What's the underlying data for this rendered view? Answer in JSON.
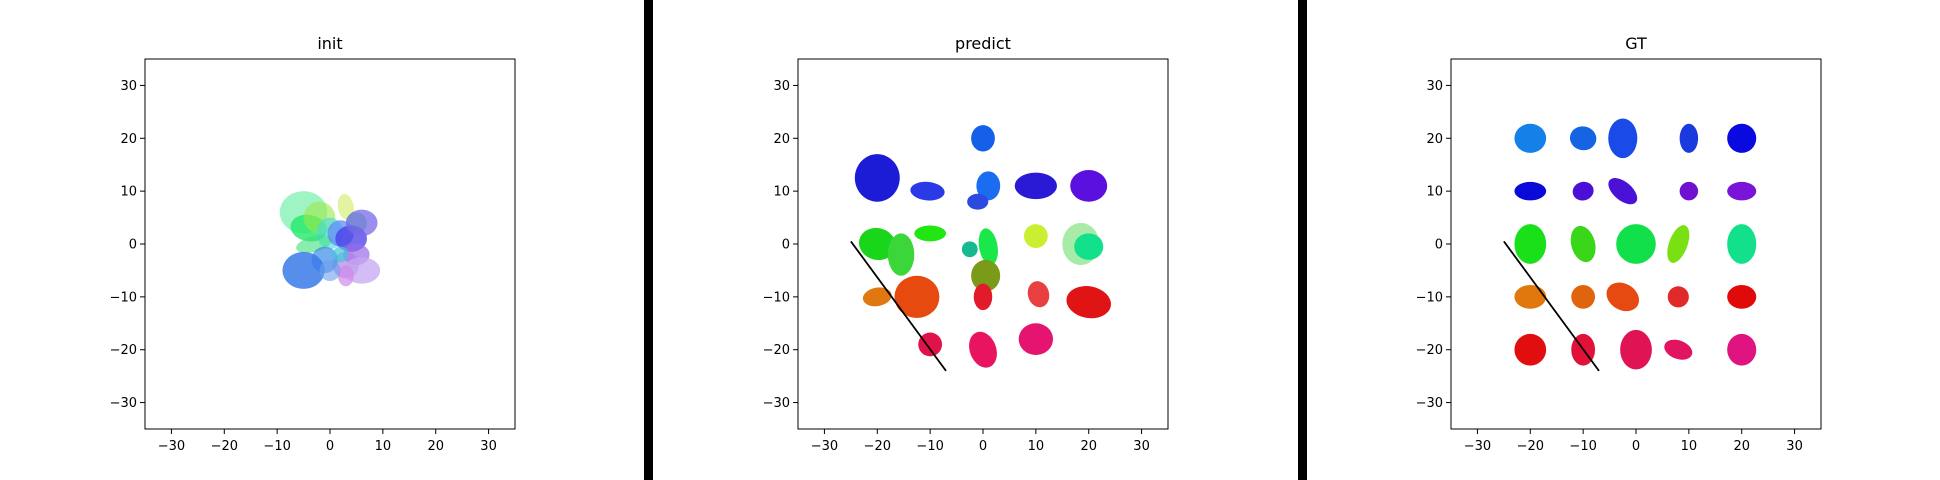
{
  "figure": {
    "separator_color": "#000000"
  },
  "chart_data": [
    {
      "type": "scatter",
      "title": "init",
      "xlabel": "",
      "ylabel": "",
      "xlim": [
        -35,
        35
      ],
      "ylim": [
        -35,
        35
      ],
      "xticks": [
        -30,
        -20,
        -10,
        0,
        10,
        20,
        30
      ],
      "yticks": [
        -30,
        -20,
        -10,
        0,
        10,
        20,
        30
      ],
      "grid": false,
      "lines": [],
      "ellipses": [
        {
          "x": -5,
          "y": 6,
          "w": 9,
          "h": 8,
          "angle": 0,
          "color": "#7ff0b0",
          "alpha": 0.75
        },
        {
          "x": -4,
          "y": 3,
          "w": 7,
          "h": 5,
          "angle": -10,
          "color": "#22e86a",
          "alpha": 0.8
        },
        {
          "x": -2,
          "y": 5,
          "w": 6,
          "h": 6,
          "angle": 0,
          "color": "#9de84a",
          "alpha": 0.6
        },
        {
          "x": 3,
          "y": 7,
          "w": 3,
          "h": 5,
          "angle": 10,
          "color": "#d6f07a",
          "alpha": 0.7
        },
        {
          "x": 5,
          "y": 4,
          "w": 4,
          "h": 4,
          "angle": 0,
          "color": "#4cd888",
          "alpha": 0.7
        },
        {
          "x": 0,
          "y": 2,
          "w": 5,
          "h": 6,
          "angle": 0,
          "color": "#42d8e8",
          "alpha": 0.6
        },
        {
          "x": -3,
          "y": 0,
          "w": 7,
          "h": 3,
          "angle": 15,
          "color": "#3ee07a",
          "alpha": 0.6
        },
        {
          "x": 2,
          "y": 2,
          "w": 5,
          "h": 5,
          "angle": 0,
          "color": "#5b8bf0",
          "alpha": 0.75
        },
        {
          "x": 4,
          "y": 1,
          "w": 6,
          "h": 5,
          "angle": 0,
          "color": "#4a3ae8",
          "alpha": 0.75
        },
        {
          "x": 6,
          "y": 4,
          "w": 6,
          "h": 5,
          "angle": 0,
          "color": "#7a6ae8",
          "alpha": 0.75
        },
        {
          "x": 5,
          "y": -2,
          "w": 5,
          "h": 4,
          "angle": 0,
          "color": "#9a6ae8",
          "alpha": 0.7
        },
        {
          "x": 3,
          "y": -4,
          "w": 5,
          "h": 5,
          "angle": 0,
          "color": "#b07ae8",
          "alpha": 0.65
        },
        {
          "x": 6,
          "y": -5,
          "w": 7,
          "h": 5,
          "angle": 0,
          "color": "#c5a6f0",
          "alpha": 0.75
        },
        {
          "x": 3,
          "y": -6,
          "w": 3,
          "h": 4,
          "angle": 0,
          "color": "#d08ae8",
          "alpha": 0.7
        },
        {
          "x": -1,
          "y": -3,
          "w": 5,
          "h": 5,
          "angle": 0,
          "color": "#3a8ae8",
          "alpha": 0.7
        },
        {
          "x": -5,
          "y": -5,
          "w": 8,
          "h": 7,
          "angle": 0,
          "color": "#3a7ae8",
          "alpha": 0.85
        },
        {
          "x": 0,
          "y": -5,
          "w": 4,
          "h": 4,
          "angle": 0,
          "color": "#6aa0ec",
          "alpha": 0.6
        },
        {
          "x": 2,
          "y": -2,
          "w": 3,
          "h": 3,
          "angle": 0,
          "color": "#3ec8d8",
          "alpha": 0.7
        }
      ]
    },
    {
      "type": "scatter",
      "title": "predict",
      "xlabel": "",
      "ylabel": "",
      "xlim": [
        -35,
        35
      ],
      "ylim": [
        -35,
        35
      ],
      "xticks": [
        -30,
        -20,
        -10,
        0,
        10,
        20,
        30
      ],
      "yticks": [
        -30,
        -20,
        -10,
        0,
        10,
        20,
        30
      ],
      "grid": false,
      "lines": [
        {
          "x1": -25,
          "y1": 0.5,
          "x2": -7,
          "y2": -24,
          "color": "#000000"
        }
      ],
      "ellipses": [
        {
          "x": -20,
          "y": 12.5,
          "w": 8.5,
          "h": 9,
          "angle": 0,
          "color": "#1c1cd6",
          "alpha": 1
        },
        {
          "x": -10.5,
          "y": 10,
          "w": 6.5,
          "h": 3.5,
          "angle": -5,
          "color": "#2a3ae6",
          "alpha": 1
        },
        {
          "x": 0,
          "y": 20,
          "w": 4.5,
          "h": 5,
          "angle": 0,
          "color": "#1460e8",
          "alpha": 1
        },
        {
          "x": 1,
          "y": 11,
          "w": 4.5,
          "h": 5.5,
          "angle": 0,
          "color": "#1a6cf0",
          "alpha": 1
        },
        {
          "x": -1,
          "y": 8,
          "w": 4,
          "h": 3,
          "angle": 0,
          "color": "#2a4ae0",
          "alpha": 1
        },
        {
          "x": 10,
          "y": 11,
          "w": 8,
          "h": 5,
          "angle": 0,
          "color": "#2a1ad6",
          "alpha": 1
        },
        {
          "x": 20,
          "y": 11,
          "w": 7,
          "h": 6,
          "angle": 0,
          "color": "#5c10e0",
          "alpha": 1
        },
        {
          "x": -20,
          "y": 0,
          "w": 7,
          "h": 6,
          "angle": -15,
          "color": "#1ad61a",
          "alpha": 1
        },
        {
          "x": -15.5,
          "y": -2,
          "w": 5,
          "h": 8,
          "angle": 0,
          "color": "#3ad63a",
          "alpha": 1
        },
        {
          "x": -10,
          "y": 2,
          "w": 6,
          "h": 3,
          "angle": 0,
          "color": "#22e612",
          "alpha": 1
        },
        {
          "x": -2.5,
          "y": -1,
          "w": 3,
          "h": 3,
          "angle": 0,
          "color": "#18b890",
          "alpha": 1
        },
        {
          "x": 1,
          "y": -0.5,
          "w": 3.5,
          "h": 7,
          "angle": 10,
          "color": "#1ae84a",
          "alpha": 1
        },
        {
          "x": 0.5,
          "y": -6,
          "w": 5.5,
          "h": 6,
          "angle": 0,
          "color": "#7a9a1a",
          "alpha": 1
        },
        {
          "x": 10,
          "y": 1.5,
          "w": 4.5,
          "h": 4.5,
          "angle": 20,
          "color": "#c8f030",
          "alpha": 1
        },
        {
          "x": 18.5,
          "y": 0,
          "w": 7,
          "h": 8,
          "angle": 0,
          "color": "#a8eba8",
          "alpha": 1
        },
        {
          "x": 20,
          "y": -0.5,
          "w": 5.5,
          "h": 5,
          "angle": 0,
          "color": "#12e08a",
          "alpha": 1
        },
        {
          "x": -20,
          "y": -10,
          "w": 5.5,
          "h": 3.5,
          "angle": 10,
          "color": "#e07812",
          "alpha": 1
        },
        {
          "x": -12.5,
          "y": -10,
          "w": 8.5,
          "h": 8,
          "angle": 0,
          "color": "#e64a0e",
          "alpha": 1
        },
        {
          "x": 0,
          "y": -10,
          "w": 3.5,
          "h": 5,
          "angle": 0,
          "color": "#e21a2a",
          "alpha": 1
        },
        {
          "x": 10.5,
          "y": -9.5,
          "w": 4,
          "h": 5,
          "angle": 15,
          "color": "#e84040",
          "alpha": 1
        },
        {
          "x": 20,
          "y": -11,
          "w": 8.5,
          "h": 6,
          "angle": -10,
          "color": "#e01414",
          "alpha": 1
        },
        {
          "x": -10,
          "y": -19,
          "w": 4.5,
          "h": 4.5,
          "angle": 0,
          "color": "#e0124a",
          "alpha": 1
        },
        {
          "x": 0,
          "y": -20,
          "w": 5,
          "h": 7,
          "angle": 20,
          "color": "#e81460",
          "alpha": 1
        },
        {
          "x": 10,
          "y": -18,
          "w": 6.5,
          "h": 6,
          "angle": 0,
          "color": "#e41470",
          "alpha": 1
        }
      ]
    },
    {
      "type": "scatter",
      "title": "GT",
      "xlabel": "",
      "ylabel": "",
      "xlim": [
        -35,
        35
      ],
      "ylim": [
        -35,
        35
      ],
      "xticks": [
        -30,
        -20,
        -10,
        0,
        10,
        20,
        30
      ],
      "yticks": [
        -30,
        -20,
        -10,
        0,
        10,
        20,
        30
      ],
      "grid": false,
      "lines": [
        {
          "x1": -25,
          "y1": 0.5,
          "x2": -7,
          "y2": -24,
          "color": "#000000"
        }
      ],
      "ellipses": [
        {
          "x": -20,
          "y": 20,
          "w": 6,
          "h": 5.5,
          "angle": 0,
          "color": "#1480e8",
          "alpha": 1
        },
        {
          "x": -10,
          "y": 20,
          "w": 5,
          "h": 4.5,
          "angle": -10,
          "color": "#1464e4",
          "alpha": 1
        },
        {
          "x": -2.5,
          "y": 20,
          "w": 5.5,
          "h": 7.5,
          "angle": 0,
          "color": "#1a4ae8",
          "alpha": 1
        },
        {
          "x": 10,
          "y": 20,
          "w": 3.5,
          "h": 5.5,
          "angle": 0,
          "color": "#1a3ae0",
          "alpha": 1
        },
        {
          "x": 20,
          "y": 20,
          "w": 5.5,
          "h": 5.5,
          "angle": 0,
          "color": "#0a0ae0",
          "alpha": 1
        },
        {
          "x": -20,
          "y": 10,
          "w": 6,
          "h": 3.5,
          "angle": 0,
          "color": "#0a0ad8",
          "alpha": 1
        },
        {
          "x": -10,
          "y": 10,
          "w": 4,
          "h": 3.5,
          "angle": 15,
          "color": "#4a10d8",
          "alpha": 1
        },
        {
          "x": -2.5,
          "y": 10,
          "w": 3.5,
          "h": 6.5,
          "angle": 50,
          "color": "#4a12d6",
          "alpha": 1
        },
        {
          "x": 10,
          "y": 10,
          "w": 3.5,
          "h": 3.5,
          "angle": 0,
          "color": "#7010d0",
          "alpha": 1
        },
        {
          "x": 20,
          "y": 10,
          "w": 5.5,
          "h": 3.5,
          "angle": 0,
          "color": "#7a14d8",
          "alpha": 1
        },
        {
          "x": -20,
          "y": 0,
          "w": 6,
          "h": 7.5,
          "angle": 0,
          "color": "#1ae01a",
          "alpha": 1
        },
        {
          "x": -10,
          "y": 0,
          "w": 4.5,
          "h": 7,
          "angle": 15,
          "color": "#3ad61a",
          "alpha": 1
        },
        {
          "x": 0,
          "y": 0,
          "w": 7.5,
          "h": 7.5,
          "angle": 0,
          "color": "#12e04a",
          "alpha": 1
        },
        {
          "x": 8,
          "y": 0,
          "w": 3.5,
          "h": 7.5,
          "angle": -20,
          "color": "#7ae012",
          "alpha": 1
        },
        {
          "x": 20,
          "y": 0,
          "w": 5.5,
          "h": 7.5,
          "angle": 0,
          "color": "#12e08a",
          "alpha": 1
        },
        {
          "x": -20,
          "y": -10,
          "w": 6,
          "h": 4.5,
          "angle": 0,
          "color": "#e0780e",
          "alpha": 1
        },
        {
          "x": -10,
          "y": -10,
          "w": 4.5,
          "h": 4.5,
          "angle": 0,
          "color": "#e0640e",
          "alpha": 1
        },
        {
          "x": -2.5,
          "y": -10,
          "w": 6.5,
          "h": 5,
          "angle": -30,
          "color": "#e64a10",
          "alpha": 1
        },
        {
          "x": 8,
          "y": -10,
          "w": 4,
          "h": 4,
          "angle": 0,
          "color": "#e02a2a",
          "alpha": 1
        },
        {
          "x": 20,
          "y": -10,
          "w": 5.5,
          "h": 4.5,
          "angle": 0,
          "color": "#e00a0a",
          "alpha": 1
        },
        {
          "x": -20,
          "y": -20,
          "w": 6,
          "h": 6,
          "angle": 0,
          "color": "#e00e0e",
          "alpha": 1
        },
        {
          "x": -10,
          "y": -20,
          "w": 4.5,
          "h": 6,
          "angle": 0,
          "color": "#e0123a",
          "alpha": 1
        },
        {
          "x": 0,
          "y": -20,
          "w": 6,
          "h": 7.5,
          "angle": 0,
          "color": "#e01454",
          "alpha": 1
        },
        {
          "x": 8,
          "y": -20,
          "w": 5.5,
          "h": 3.5,
          "angle": -20,
          "color": "#e01460",
          "alpha": 1
        },
        {
          "x": 20,
          "y": -20,
          "w": 5.5,
          "h": 6,
          "angle": 0,
          "color": "#e01480",
          "alpha": 1
        }
      ]
    }
  ]
}
